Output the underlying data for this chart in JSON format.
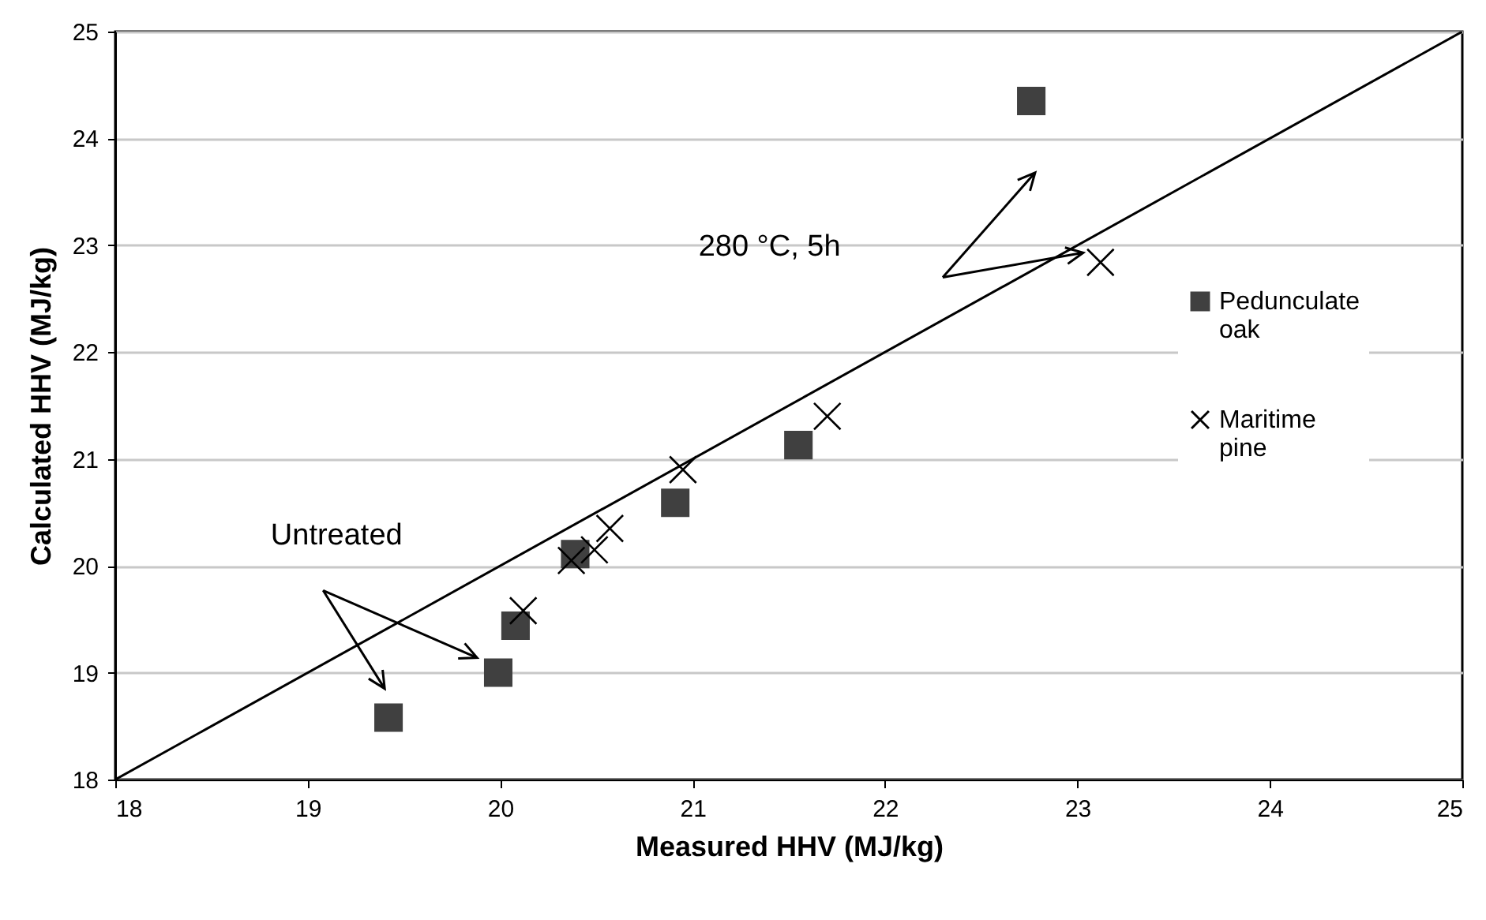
{
  "chart_data": {
    "type": "scatter",
    "xlabel": "Measured HHV (MJ/kg)",
    "ylabel": "Calculated HHV (MJ/kg)",
    "xlim": [
      18,
      25
    ],
    "ylim": [
      18,
      25
    ],
    "xticks": [
      18,
      19,
      20,
      21,
      22,
      23,
      24,
      25
    ],
    "yticks": [
      18,
      19,
      20,
      21,
      22,
      23,
      24,
      25
    ],
    "grid": "y",
    "legend": "right",
    "annotations": [
      "Untreated",
      "280 °C, 5h"
    ],
    "series": [
      {
        "type": "line",
        "color": "#000000",
        "x": [
          18,
          25
        ],
        "values": [
          18,
          25
        ]
      },
      {
        "name": "Pedunculate oak",
        "color": "#404040",
        "marker": "square",
        "x": [
          19.42,
          19.99,
          20.08,
          20.39,
          20.91,
          21.55,
          22.76
        ],
        "values": [
          18.58,
          19.0,
          19.44,
          20.11,
          20.59,
          21.13,
          24.35
        ]
      },
      {
        "name": "Maritime pine",
        "color": "#000000",
        "marker": "cross",
        "x": [
          20.12,
          20.37,
          20.49,
          20.57,
          20.95,
          21.7,
          23.12
        ],
        "values": [
          19.58,
          20.05,
          20.15,
          20.35,
          20.9,
          21.4,
          22.84
        ]
      }
    ]
  }
}
